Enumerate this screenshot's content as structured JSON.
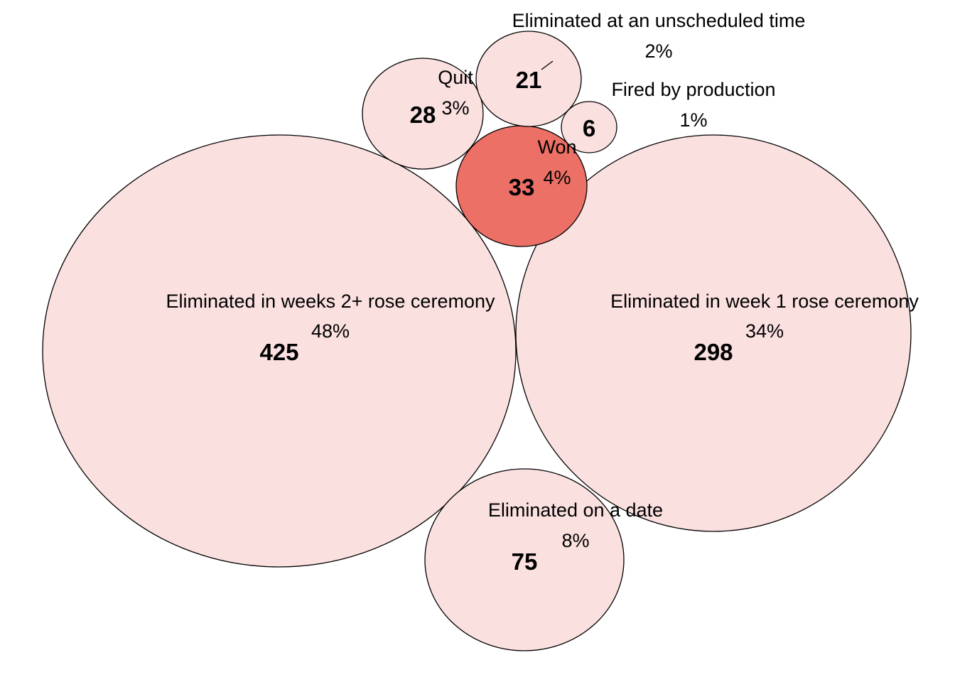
{
  "chart_data": {
    "type": "bubble",
    "title": "",
    "colors": {
      "default_fill": "#fbe0e0",
      "highlight_fill": "#ec7066",
      "stroke": "#000000"
    },
    "series": [
      {
        "name": "Eliminated in weeks 2+ rose ceremony",
        "count": 425,
        "percent_label": "48%",
        "highlight": false
      },
      {
        "name": "Eliminated in week 1 rose ceremony",
        "count": 298,
        "percent_label": "34%",
        "highlight": false
      },
      {
        "name": "Eliminated on a date",
        "count": 75,
        "percent_label": "8%",
        "highlight": false
      },
      {
        "name": "Won",
        "count": 33,
        "percent_label": "4%",
        "highlight": true
      },
      {
        "name": "Quit",
        "count": 28,
        "percent_label": "3%",
        "highlight": false
      },
      {
        "name": "Eliminated at an unscheduled time",
        "count": 21,
        "percent_label": "2%",
        "highlight": false
      },
      {
        "name": "Fired by production",
        "count": 6,
        "percent_label": "1%",
        "highlight": false
      }
    ]
  }
}
